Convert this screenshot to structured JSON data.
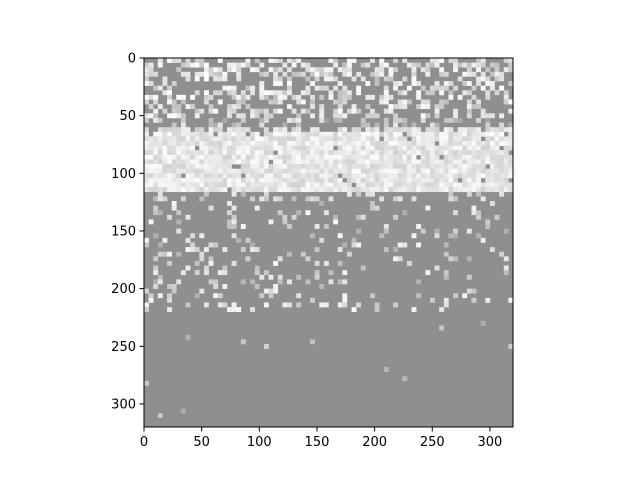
{
  "chart_data": {
    "type": "heatmap",
    "title": "",
    "xlabel": "",
    "ylabel": "",
    "xlim": [
      0,
      320
    ],
    "ylim": [
      320,
      0
    ],
    "x_ticks": [
      0,
      50,
      100,
      150,
      200,
      250,
      300
    ],
    "y_ticks": [
      0,
      50,
      100,
      150,
      200,
      250,
      300
    ],
    "x_tick_labels": [
      "0",
      "50",
      "100",
      "150",
      "200",
      "250",
      "300"
    ],
    "y_tick_labels": [
      "0",
      "50",
      "100",
      "150",
      "200",
      "250",
      "300"
    ],
    "grid": false,
    "colormap": "gray",
    "colors": {
      "background": "#8f8f8f",
      "highlight": "#ffffff",
      "axis": "#000000"
    }
  }
}
